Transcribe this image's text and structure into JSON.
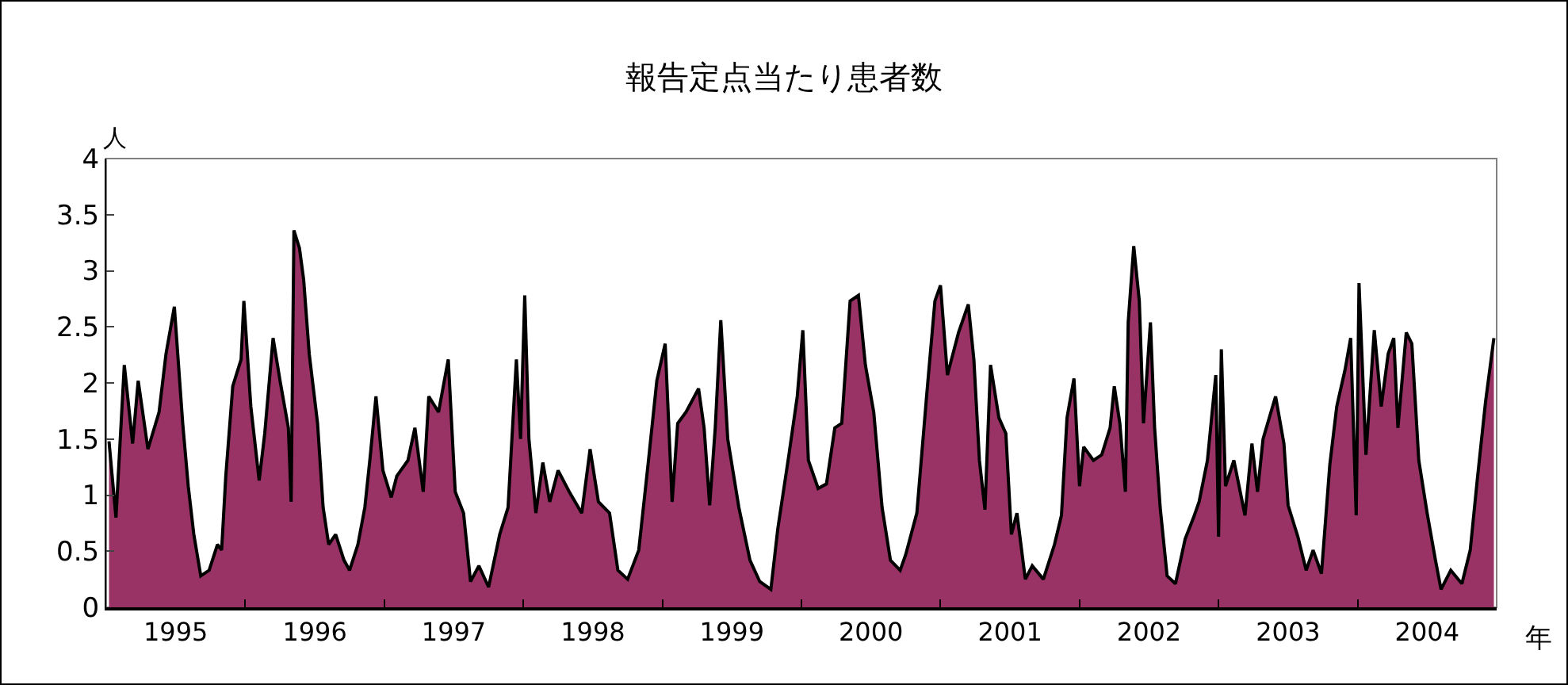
{
  "chart_data": {
    "type": "area",
    "title": "報告定点当たり患者数",
    "xlabel": "年",
    "ylabel": "人",
    "x": [
      1995.02,
      1995.07,
      1995.13,
      1995.19,
      1995.23,
      1995.3,
      1995.38,
      1995.43,
      1995.49,
      1995.55,
      1995.59,
      1995.63,
      1995.68,
      1995.74,
      1995.8,
      1995.83,
      1995.86,
      1995.91,
      1995.97,
      1995.99,
      1996.04,
      1996.1,
      1996.14,
      1996.2,
      1996.25,
      1996.31,
      1996.33,
      1996.35,
      1996.39,
      1996.42,
      1996.46,
      1996.52,
      1996.56,
      1996.6,
      1996.65,
      1996.71,
      1996.75,
      1996.81,
      1996.86,
      1996.9,
      1996.94,
      1996.99,
      1997.05,
      1997.09,
      1997.17,
      1997.22,
      1997.28,
      1997.32,
      1997.39,
      1997.46,
      1997.51,
      1997.57,
      1997.62,
      1997.68,
      1997.75,
      1997.83,
      1997.89,
      1997.95,
      1997.98,
      1998.01,
      1998.04,
      1998.09,
      1998.14,
      1998.19,
      1998.25,
      1998.33,
      1998.42,
      1998.48,
      1998.54,
      1998.62,
      1998.68,
      1998.75,
      1998.83,
      1998.9,
      1998.96,
      1999.02,
      1999.07,
      1999.11,
      1999.17,
      1999.26,
      1999.3,
      1999.34,
      1999.38,
      1999.42,
      1999.47,
      1999.55,
      1999.63,
      1999.7,
      1999.78,
      1999.83,
      1999.91,
      1999.97,
      2000.01,
      2000.05,
      2000.12,
      2000.18,
      2000.24,
      2000.29,
      2000.35,
      2000.41,
      2000.46,
      2000.52,
      2000.58,
      2000.64,
      2000.71,
      2000.75,
      2000.83,
      2000.9,
      2000.96,
      2001.0,
      2001.05,
      2001.13,
      2001.2,
      2001.24,
      2001.28,
      2001.32,
      2001.36,
      2001.42,
      2001.47,
      2001.51,
      2001.55,
      2001.61,
      2001.66,
      2001.74,
      2001.82,
      2001.87,
      2001.91,
      2001.96,
      2002.0,
      2002.03,
      2002.1,
      2002.16,
      2002.22,
      2002.25,
      2002.29,
      2002.33,
      2002.35,
      2002.39,
      2002.43,
      2002.46,
      2002.51,
      2002.54,
      2002.58,
      2002.63,
      2002.69,
      2002.76,
      2002.82,
      2002.86,
      2002.92,
      2002.98,
      2003.0,
      2003.02,
      2003.05,
      2003.11,
      2003.19,
      2003.24,
      2003.28,
      2003.32,
      2003.41,
      2003.47,
      2003.5,
      2003.57,
      2003.63,
      2003.68,
      2003.74,
      2003.8,
      2003.85,
      2003.91,
      2003.95,
      2003.99,
      2004.01,
      2004.06,
      2004.12,
      2004.17,
      2004.22,
      2004.26,
      2004.29,
      2004.35,
      2004.39,
      2004.44,
      2004.5,
      2004.56,
      2004.6,
      2004.67,
      2004.75,
      2004.81,
      2004.86,
      2004.92,
      2004.98
    ],
    "series": [
      {
        "color": "#993366",
        "values": [
          1.48,
          0.8,
          2.16,
          1.46,
          2.02,
          1.41,
          1.74,
          2.26,
          2.68,
          1.64,
          1.08,
          0.65,
          0.28,
          0.33,
          0.56,
          0.51,
          1.17,
          1.97,
          2.21,
          2.73,
          1.79,
          1.13,
          1.55,
          2.4,
          2.02,
          1.6,
          0.94,
          3.36,
          3.2,
          2.92,
          2.26,
          1.64,
          0.89,
          0.56,
          0.65,
          0.42,
          0.33,
          0.56,
          0.89,
          1.36,
          1.88,
          1.22,
          0.98,
          1.17,
          1.31,
          1.6,
          1.03,
          1.88,
          1.74,
          2.21,
          1.03,
          0.84,
          0.23,
          0.37,
          0.18,
          0.65,
          0.89,
          2.21,
          1.5,
          2.78,
          1.5,
          0.84,
          1.29,
          0.94,
          1.22,
          1.03,
          0.84,
          1.41,
          0.94,
          0.84,
          0.33,
          0.25,
          0.51,
          1.31,
          2.02,
          2.35,
          0.94,
          1.64,
          1.74,
          1.95,
          1.6,
          0.91,
          1.6,
          2.56,
          1.5,
          0.89,
          0.42,
          0.23,
          0.16,
          0.7,
          1.36,
          1.88,
          2.47,
          1.31,
          1.06,
          1.1,
          1.6,
          1.64,
          2.73,
          2.78,
          2.16,
          1.74,
          0.89,
          0.42,
          0.33,
          0.47,
          0.84,
          1.88,
          2.73,
          2.87,
          2.07,
          2.45,
          2.7,
          2.21,
          1.31,
          0.87,
          2.16,
          1.69,
          1.55,
          0.65,
          0.84,
          0.25,
          0.37,
          0.25,
          0.56,
          0.82,
          1.69,
          2.04,
          1.08,
          1.43,
          1.31,
          1.36,
          1.6,
          1.97,
          1.64,
          1.03,
          2.54,
          3.22,
          2.73,
          1.64,
          2.54,
          1.6,
          0.89,
          0.28,
          0.21,
          0.61,
          0.8,
          0.94,
          1.31,
          2.07,
          0.63,
          2.3,
          1.08,
          1.31,
          0.82,
          1.46,
          1.03,
          1.5,
          1.88,
          1.46,
          0.91,
          0.63,
          0.33,
          0.51,
          0.3,
          1.27,
          1.79,
          2.12,
          2.4,
          0.82,
          2.89,
          1.36,
          2.47,
          1.79,
          2.26,
          2.4,
          1.6,
          2.45,
          2.35,
          1.31,
          0.84,
          0.42,
          0.16,
          0.33,
          0.21,
          0.51,
          1.13,
          1.83,
          2.4
        ]
      }
    ],
    "xlim": [
      1995,
      2005
    ],
    "xticks": [
      {
        "value": 1995.5,
        "label": "1995"
      },
      {
        "value": 1996.5,
        "label": "1996"
      },
      {
        "value": 1997.5,
        "label": "1997"
      },
      {
        "value": 1998.5,
        "label": "1998"
      },
      {
        "value": 1999.5,
        "label": "1999"
      },
      {
        "value": 2000.5,
        "label": "2000"
      },
      {
        "value": 2001.5,
        "label": "2001"
      },
      {
        "value": 2002.5,
        "label": "2002"
      },
      {
        "value": 2003.5,
        "label": "2003"
      },
      {
        "value": 2004.5,
        "label": "2004"
      },
      {
        "value": 1996,
        "label": null
      },
      {
        "value": 1997,
        "label": null
      },
      {
        "value": 1998,
        "label": null
      },
      {
        "value": 1999,
        "label": null
      },
      {
        "value": 2000,
        "label": null
      },
      {
        "value": 2001,
        "label": null
      },
      {
        "value": 2002,
        "label": null
      },
      {
        "value": 2003,
        "label": null
      },
      {
        "value": 2004,
        "label": null
      }
    ],
    "ylim": [
      0,
      4
    ],
    "yticks": [
      0,
      0.5,
      1,
      1.5,
      2,
      2.5,
      3,
      3.5,
      4
    ]
  }
}
